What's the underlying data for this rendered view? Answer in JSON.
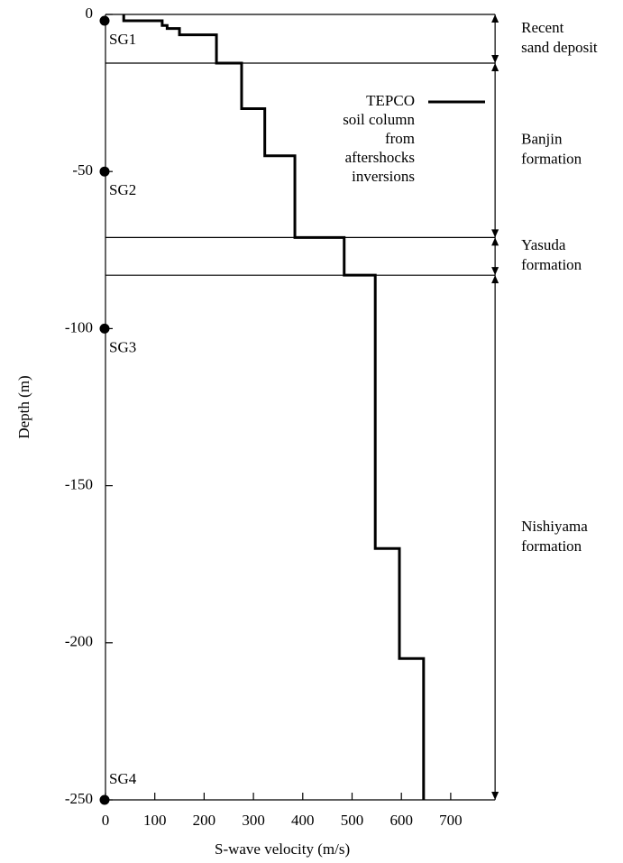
{
  "chart_data": {
    "type": "line",
    "xlabel": "S-wave velocity (m/s)",
    "ylabel": "Depth (m)",
    "xlim": [
      0,
      790
    ],
    "xticks": [
      0,
      100,
      200,
      300,
      400,
      500,
      600,
      700
    ],
    "ylim": [
      -250,
      0
    ],
    "yticks": [
      0,
      -50,
      -100,
      -150,
      -200,
      -250
    ],
    "series": [
      {
        "name": [
          "TEPCO",
          "soil column",
          "from",
          "aftershocks",
          "inversions"
        ],
        "color": "#000000",
        "x": [
          37,
          37,
          115,
          115,
          125,
          125,
          150,
          150,
          225,
          225,
          276,
          276,
          323,
          323,
          384,
          384,
          484,
          484,
          547,
          547,
          596,
          596,
          645,
          645
        ],
        "values": [
          0,
          -2,
          -2,
          -3.5,
          -3.5,
          -4.5,
          -4.5,
          -6.5,
          -6.5,
          -15.5,
          -15.5,
          -30,
          -30,
          -45,
          -45,
          -71,
          -71,
          -83,
          -83,
          -170,
          -170,
          -205,
          -205,
          -250
        ]
      }
    ],
    "boundaries": [
      -15.5,
      -71,
      -83
    ],
    "formations": [
      [
        "Recent",
        "sand deposit"
      ],
      [
        "Banjin",
        "formation"
      ],
      [
        "Yasuda",
        "formation"
      ],
      [
        "Nishiyama",
        "formation"
      ]
    ],
    "sensors": [
      {
        "name": "SG1",
        "depth": -2
      },
      {
        "name": "SG2",
        "depth": -50
      },
      {
        "name": "SG3",
        "depth": -100
      },
      {
        "name": "SG4",
        "depth": -250
      }
    ]
  }
}
